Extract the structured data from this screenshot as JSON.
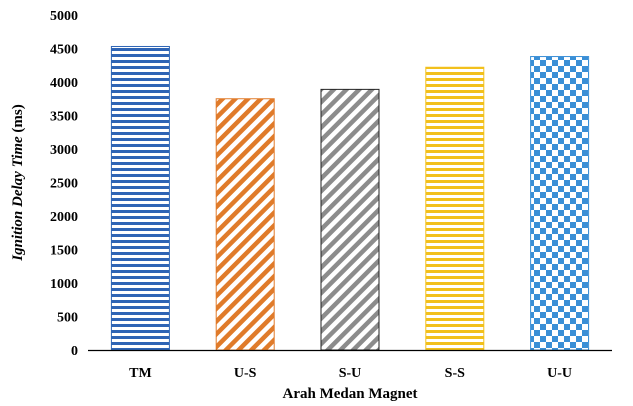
{
  "chart_data": {
    "type": "bar",
    "categories": [
      "TM",
      "U-S",
      "S-U",
      "S-S",
      "U-U"
    ],
    "values": [
      4530,
      3750,
      3890,
      4220,
      4380
    ],
    "xlabel": "Arah Medan Magnet",
    "ylabel_italic": "Ignition Delay Time",
    "ylabel_unit": " (ms)",
    "ylim": [
      0,
      5000
    ],
    "yticks": [
      "0",
      "500",
      "1000",
      "1500",
      "2000",
      "2500",
      "3000",
      "3500",
      "4000",
      "4500",
      "5000"
    ],
    "grid": false,
    "legend": "none",
    "bar_styles": [
      {
        "pattern": "horizontal-stripes",
        "color": "#2e64b5"
      },
      {
        "pattern": "diagonal-stripes",
        "color": "#e07b2a"
      },
      {
        "pattern": "diagonal-stripes",
        "color": "#8c8c8c"
      },
      {
        "pattern": "horizontal-stripes",
        "color": "#f2c01c"
      },
      {
        "pattern": "checkerboard",
        "color": "#3a8fd6"
      }
    ]
  }
}
